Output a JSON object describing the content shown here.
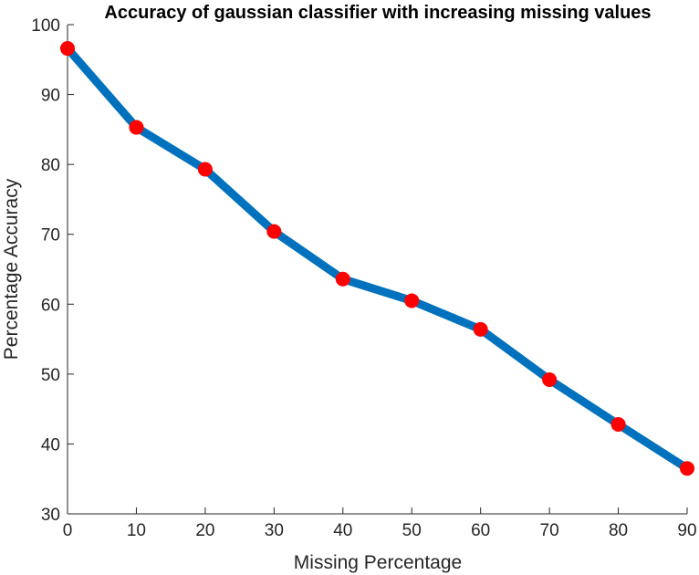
{
  "chart_data": {
    "type": "line",
    "title": "Accuracy of gaussian classifier with increasing missing values",
    "xlabel": "Missing Percentage",
    "ylabel": "Percentage Accuracy",
    "xlim": [
      0,
      90
    ],
    "ylim": [
      30,
      100
    ],
    "xticks": [
      0,
      10,
      20,
      30,
      40,
      50,
      60,
      70,
      80,
      90
    ],
    "yticks": [
      30,
      40,
      50,
      60,
      70,
      80,
      90,
      100
    ],
    "grid": false,
    "legend": "none",
    "series": [
      {
        "x": [
          0,
          10,
          20,
          30,
          40,
          50,
          60,
          70,
          80,
          90
        ],
        "values": [
          96.6,
          85.3,
          79.3,
          70.4,
          63.6,
          60.5,
          56.4,
          49.2,
          42.8,
          36.5
        ],
        "line_color": "#0072BD",
        "marker_color": "#FF0000"
      }
    ]
  }
}
